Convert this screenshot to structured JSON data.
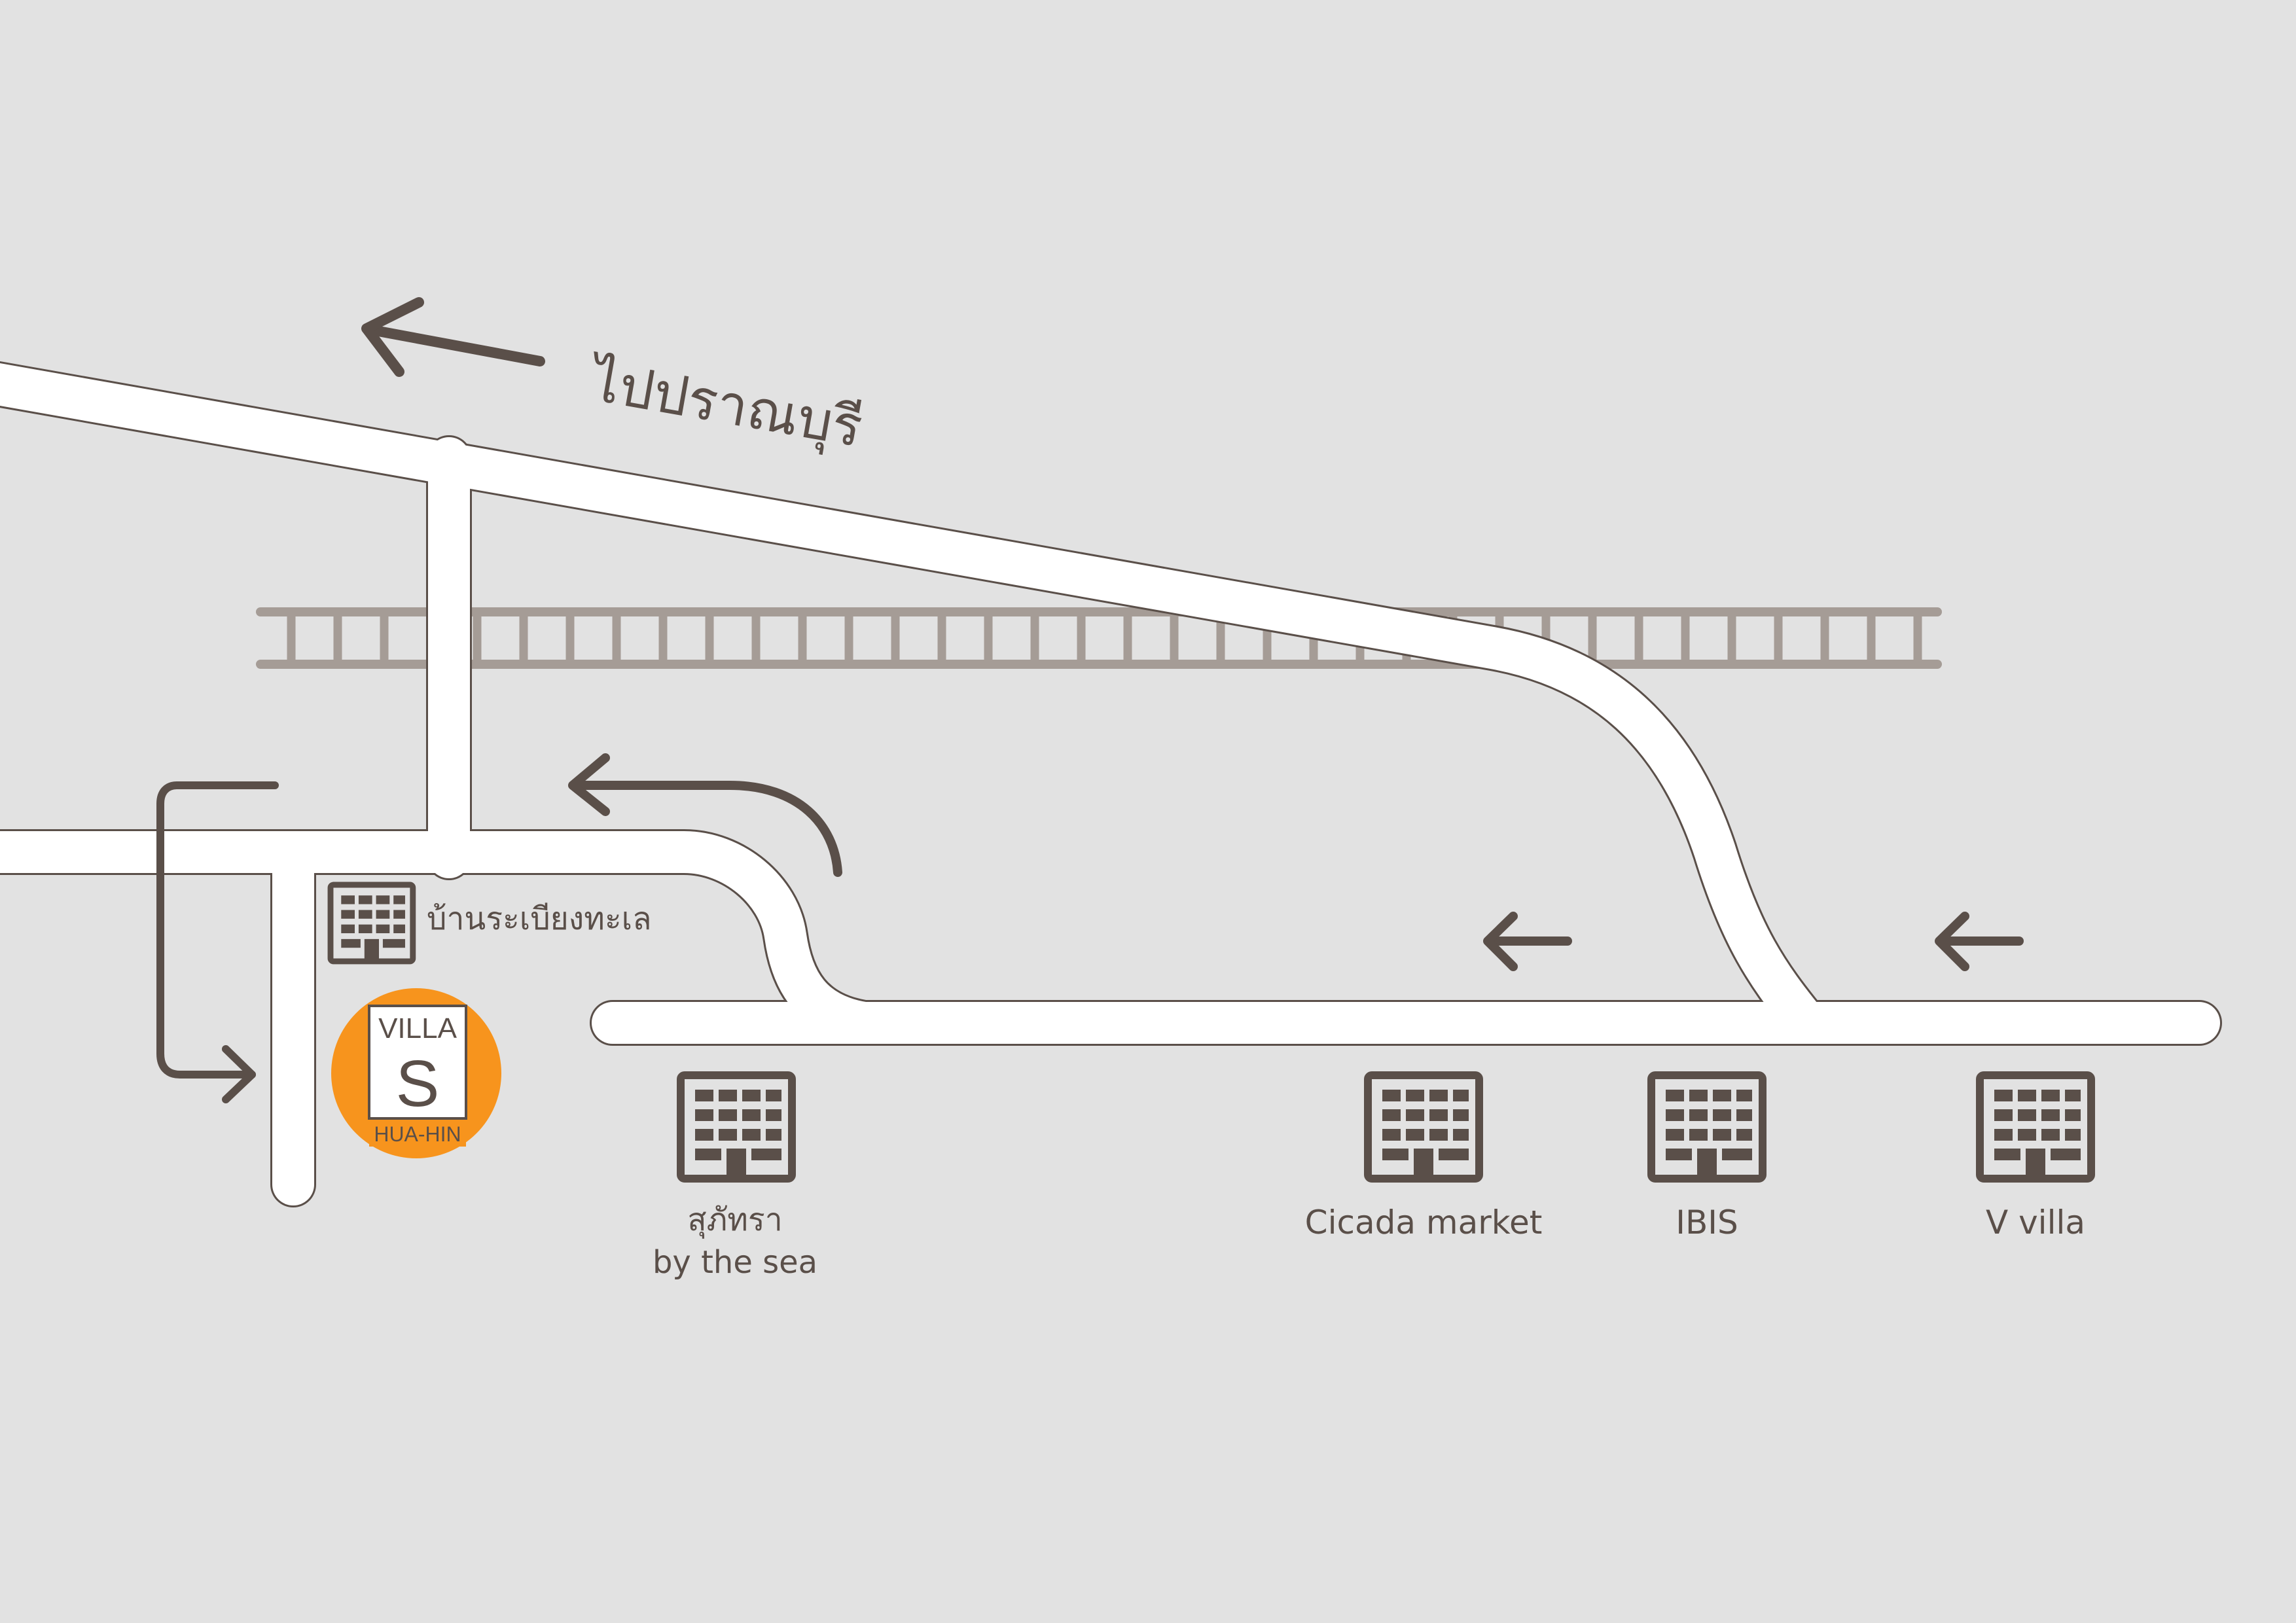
{
  "map": {
    "colors": {
      "background": "#e2e2e2",
      "road_fill": "#ffffff",
      "road_edge": "#5a4f49",
      "arrow": "#5a4f49",
      "railway": "#a59c96",
      "building": "#5a4f49",
      "logo_circle": "#f7941d"
    },
    "direction_label": "ไปปราณบุรี",
    "landmarks": {
      "ban_rabiang": "บ้านระเบียงทะเล",
      "suphattra_line1": "สุภัทรา",
      "suphattra_line2": "by the sea",
      "cicada": "Cicada market",
      "ibis": "IBIS",
      "v_villa": "V villa"
    },
    "logo": {
      "top": "VILLA",
      "letter": "S",
      "bottom": "HUA-HIN"
    },
    "icons": {
      "building": "building-icon",
      "arrow": "arrow-left-icon",
      "railway": "railway-track-icon"
    }
  }
}
